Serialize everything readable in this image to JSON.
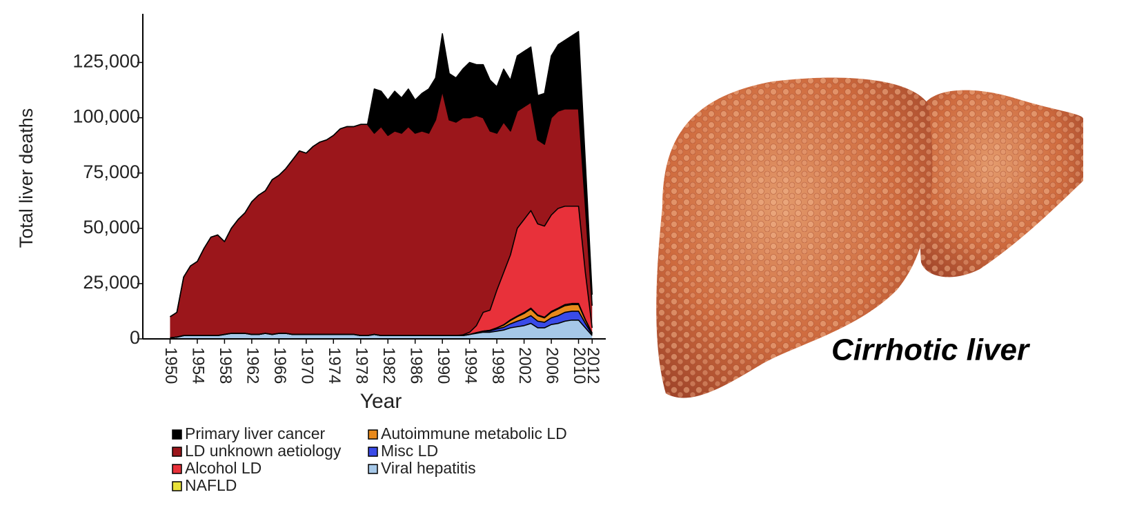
{
  "chart_data": {
    "type": "stacked_area",
    "x_label": "Year",
    "y_label": "Total liver deaths",
    "annotation": "Cirrhotic liver",
    "x": [
      1950,
      1951,
      1952,
      1953,
      1954,
      1955,
      1956,
      1957,
      1958,
      1959,
      1960,
      1961,
      1962,
      1963,
      1964,
      1965,
      1966,
      1967,
      1968,
      1969,
      1970,
      1971,
      1972,
      1973,
      1974,
      1975,
      1976,
      1977,
      1978,
      1979,
      1980,
      1981,
      1982,
      1983,
      1984,
      1985,
      1986,
      1987,
      1988,
      1989,
      1990,
      1991,
      1992,
      1993,
      1994,
      1995,
      1996,
      1997,
      1998,
      1999,
      2000,
      2001,
      2002,
      2003,
      2004,
      2005,
      2006,
      2007,
      2008,
      2009,
      2010,
      2011,
      2012
    ],
    "series": [
      {
        "name": "Primary liver cancer",
        "color": "#000000",
        "values": [
          0,
          0,
          0,
          0,
          0,
          0,
          0,
          0,
          0,
          0,
          0,
          0,
          0,
          0,
          0,
          0,
          0,
          0,
          0,
          0,
          0,
          0,
          0,
          0,
          0,
          0,
          0,
          0,
          0,
          0,
          20000,
          16000,
          16000,
          18000,
          16000,
          17000,
          15000,
          17000,
          20000,
          19000,
          26000,
          21000,
          20000,
          22000,
          25000,
          23000,
          24000,
          23000,
          21000,
          24000,
          23000,
          25000,
          25000,
          25000,
          20000,
          23000,
          28000,
          30000,
          31000,
          33000,
          35000,
          20000,
          5000
        ]
      },
      {
        "name": "LD unknown aetiology",
        "color": "#9b161b",
        "values": [
          9500,
          11200,
          26500,
          31500,
          33500,
          39500,
          44500,
          45500,
          42000,
          47500,
          51500,
          54500,
          60000,
          63000,
          64500,
          70000,
          71500,
          74500,
          79000,
          83000,
          82000,
          85000,
          87000,
          88000,
          90000,
          93000,
          94000,
          94000,
          95500,
          95500,
          91000,
          94500,
          90500,
          92500,
          91500,
          94500,
          91500,
          92500,
          91500,
          97500,
          110500,
          97500,
          96500,
          98200,
          97000,
          95000,
          88000,
          81000,
          71000,
          68000,
          56000,
          53000,
          51000,
          49000,
          38000,
          37000,
          44000,
          44000,
          44000,
          44000,
          44000,
          30000,
          10000
        ]
      },
      {
        "name": "Alcohol LD",
        "color": "#e8313a",
        "values": [
          0,
          0,
          0,
          0,
          0,
          0,
          0,
          0,
          0,
          0,
          0,
          0,
          0,
          0,
          0,
          0,
          0,
          0,
          0,
          0,
          0,
          0,
          0,
          0,
          0,
          0,
          0,
          0,
          0,
          0,
          0,
          0,
          0,
          0,
          0,
          0,
          0,
          0,
          0,
          0,
          0,
          0,
          0,
          300,
          1000,
          3200,
          8500,
          9100,
          17000,
          23600,
          29400,
          39700,
          42100,
          44100,
          41200,
          41200,
          43600,
          45100,
          44500,
          44000,
          44000,
          21200,
          2400
        ]
      },
      {
        "name": "NAFLD",
        "color": "#e8e23a",
        "values": [
          0,
          0,
          0,
          0,
          0,
          0,
          0,
          0,
          0,
          0,
          0,
          0,
          0,
          0,
          0,
          0,
          0,
          0,
          0,
          0,
          0,
          0,
          0,
          0,
          0,
          0,
          0,
          0,
          0,
          0,
          0,
          0,
          0,
          0,
          0,
          0,
          0,
          0,
          0,
          0,
          0,
          0,
          0,
          0,
          0,
          0,
          0,
          0,
          0,
          200,
          300,
          300,
          400,
          400,
          300,
          300,
          400,
          400,
          500,
          500,
          500,
          300,
          100
        ]
      },
      {
        "name": "Autoimmune metabolic LD",
        "color": "#e8891b",
        "values": [
          0,
          0,
          0,
          0,
          0,
          0,
          0,
          0,
          0,
          0,
          0,
          0,
          0,
          0,
          0,
          0,
          0,
          0,
          0,
          0,
          0,
          0,
          0,
          0,
          0,
          0,
          0,
          0,
          0,
          0,
          0,
          0,
          0,
          0,
          0,
          0,
          0,
          0,
          0,
          0,
          0,
          0,
          0,
          0,
          0,
          0,
          0,
          300,
          500,
          1000,
          1500,
          2000,
          2500,
          3000,
          2500,
          2000,
          2500,
          3000,
          3000,
          3000,
          3000,
          1500,
          500
        ]
      },
      {
        "name": "Misc LD",
        "color": "#3a4be8",
        "values": [
          0,
          0,
          0,
          0,
          0,
          0,
          0,
          0,
          0,
          0,
          0,
          0,
          0,
          0,
          0,
          0,
          0,
          0,
          0,
          0,
          0,
          0,
          0,
          0,
          0,
          0,
          0,
          0,
          0,
          0,
          0,
          0,
          0,
          0,
          0,
          0,
          0,
          0,
          0,
          0,
          0,
          0,
          0,
          0,
          0,
          300,
          500,
          600,
          1000,
          1200,
          1800,
          2500,
          3000,
          3500,
          3000,
          2500,
          3000,
          3500,
          4000,
          4000,
          4000,
          2000,
          500
        ]
      },
      {
        "name": "Viral hepatitis",
        "color": "#a6c8e8",
        "values": [
          500,
          800,
          1500,
          1500,
          1500,
          1500,
          1500,
          1500,
          2000,
          2500,
          2500,
          2500,
          2000,
          2000,
          2500,
          2000,
          2500,
          2500,
          2000,
          2000,
          2000,
          2000,
          2000,
          2000,
          2000,
          2000,
          2000,
          2000,
          1500,
          1500,
          2000,
          1500,
          1500,
          1500,
          1500,
          1500,
          1500,
          1500,
          1500,
          1500,
          1500,
          1500,
          1500,
          1500,
          2000,
          2500,
          3000,
          3000,
          3500,
          4000,
          5000,
          5500,
          6000,
          7000,
          5000,
          5000,
          6500,
          7000,
          8000,
          8500,
          8500,
          5000,
          1500
        ]
      }
    ],
    "xlim": [
      1946,
      2014
    ],
    "xticks": [
      1950,
      1954,
      1958,
      1962,
      1966,
      1970,
      1974,
      1978,
      1982,
      1986,
      1990,
      1994,
      1998,
      2002,
      2006,
      2010,
      2012
    ],
    "ylim": [
      0,
      147000
    ],
    "yticks": [
      0,
      {
        "value": 25000,
        "label": "25,000"
      },
      {
        "value": 50000,
        "label": "50,000"
      },
      {
        "value": 75000,
        "label": "75,000"
      },
      {
        "value": 100000,
        "label": "100,000"
      },
      {
        "value": 125000,
        "label": "125,000"
      }
    ]
  }
}
